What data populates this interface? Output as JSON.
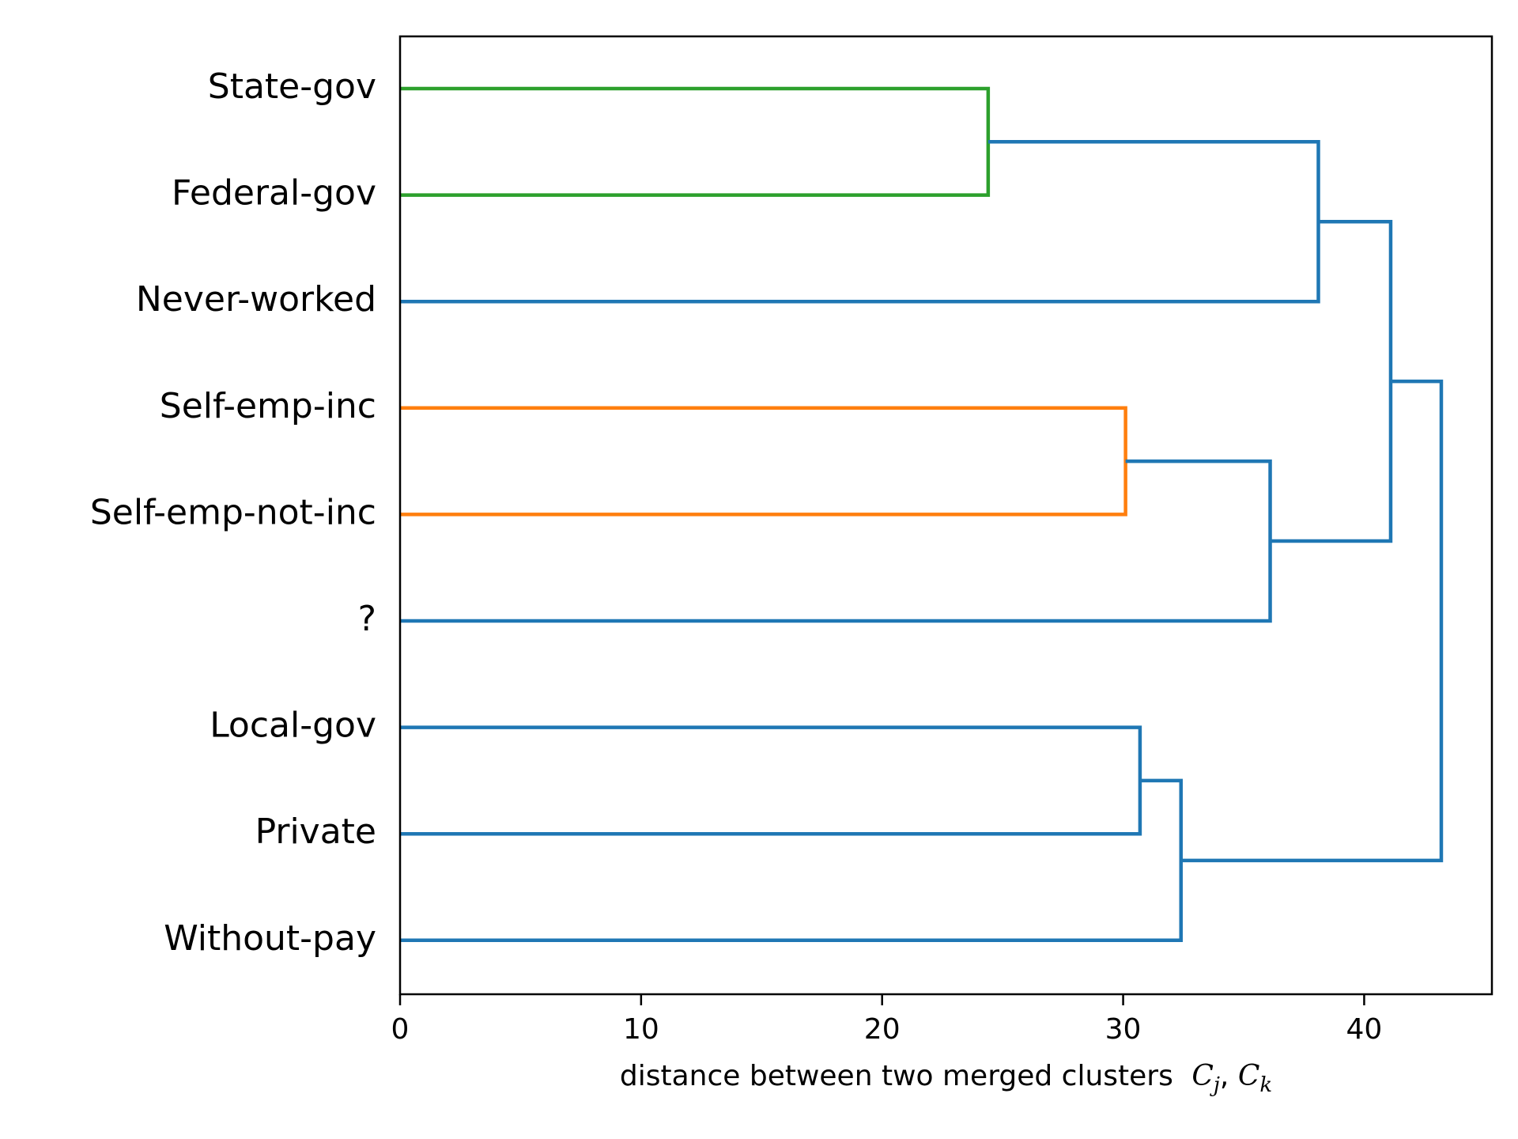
{
  "chart_data": {
    "type": "dendrogram",
    "orientation": "left",
    "title": "",
    "xlabel": "distance between two merged clusters",
    "xlabel_math": {
      "a": "C",
      "a_sub": "j",
      "b": "C",
      "b_sub": "k"
    },
    "ylabel": "",
    "xlim": [
      0,
      45.3
    ],
    "xticks": [
      0,
      10,
      20,
      30,
      40
    ],
    "xtick_labels": [
      "0",
      "10",
      "20",
      "30",
      "40"
    ],
    "grid": false,
    "leaves": [
      "State-gov",
      "Federal-gov",
      "Never-worked",
      "Self-emp-inc",
      "Self-emp-not-inc",
      "?",
      "Local-gov",
      "Private",
      "Without-pay"
    ],
    "merges": [
      {
        "id": "m1",
        "left": "State-gov",
        "right": "Federal-gov",
        "distance": 24.4,
        "color": "#2ca02c"
      },
      {
        "id": "m2",
        "left": "m1",
        "right": "Never-worked",
        "distance": 38.1,
        "color": "#1f77b4"
      },
      {
        "id": "m3",
        "left": "Self-emp-inc",
        "right": "Self-emp-not-inc",
        "distance": 30.1,
        "color": "#ff7f0e"
      },
      {
        "id": "m4",
        "left": "m3",
        "right": "?",
        "distance": 36.1,
        "color": "#1f77b4"
      },
      {
        "id": "m5",
        "left": "m2",
        "right": "m4",
        "distance": 41.1,
        "color": "#1f77b4"
      },
      {
        "id": "m6",
        "left": "Local-gov",
        "right": "Private",
        "distance": 30.7,
        "color": "#1f77b4"
      },
      {
        "id": "m7",
        "left": "m6",
        "right": "Without-pay",
        "distance": 32.4,
        "color": "#1f77b4"
      },
      {
        "id": "m8",
        "left": "m5",
        "right": "m7",
        "distance": 43.2,
        "color": "#1f77b4"
      }
    ]
  }
}
